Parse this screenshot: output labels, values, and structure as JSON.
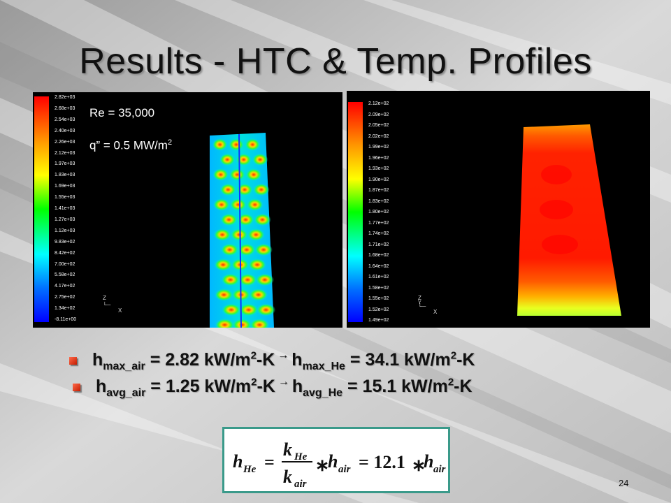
{
  "slide": {
    "title": "Results - HTC & Temp. Profiles",
    "page_number": "24"
  },
  "htc_panel": {
    "annot_re": "Re = 35,000",
    "annot_q": "q” = 0.5 MW/m",
    "annot_q_sup": "2",
    "colorbar_labels": [
      "2.82e+03",
      "2.68e+03",
      "2.54e+03",
      "2.40e+03",
      "2.26e+03",
      "2.12e+03",
      "1.97e+03",
      "1.83e+03",
      "1.69e+03",
      "1.55e+03",
      "1.41e+03",
      "1.27e+03",
      "1.12e+03",
      "9.83e+02",
      "8.42e+02",
      "7.00e+02",
      "5.58e+02",
      "4.17e+02",
      "2.75e+02",
      "1.34e+02",
      "-8.11e+00"
    ],
    "axis_z": "Z",
    "axis_x": "X"
  },
  "temp_panel": {
    "colorbar_labels": [
      "2.12e+02",
      "2.09e+02",
      "2.05e+02",
      "2.02e+02",
      "1.99e+02",
      "1.96e+02",
      "1.93e+02",
      "1.90e+02",
      "1.87e+02",
      "1.83e+02",
      "1.80e+02",
      "1.77e+02",
      "1.74e+02",
      "1.71e+02",
      "1.68e+02",
      "1.64e+02",
      "1.61e+02",
      "1.58e+02",
      "1.55e+02",
      "1.52e+02",
      "1.49e+02"
    ],
    "axis_z": "Z",
    "axis_y": "Y",
    "axis_x": "X"
  },
  "bullets": [
    {
      "h1": "h",
      "sub1": "max_air",
      "val1": " = 2.82 kW/m",
      "sup1": "2",
      "unit1": "-K",
      "arrow": "→",
      "h2": "h",
      "sub2": "max_He",
      "val2": " = 34.1 kW/m",
      "sup2": "2",
      "unit2": "-K"
    },
    {
      "h1": "h",
      "sub1": "avg_air",
      "val1": " = 1.25 kW/m",
      "sup1": "2",
      "unit1": "-K",
      "arrow": "→",
      "h2": "h",
      "sub2": "avg_He",
      "val2": " = 15.1 kW/m",
      "sup2": "2",
      "unit2": "-K"
    }
  ],
  "formula": {
    "lhs": "h",
    "lhs_sub": "He",
    "eq1": "=",
    "num": "k",
    "num_sub": "He",
    "den": "k",
    "den_sub": "air",
    "times1": "∗",
    "h_air": "h",
    "h_air_sub": "air",
    "eq2": "= 12.1",
    "times2": "∗",
    "h_air2": "h",
    "h_air2_sub": "air"
  },
  "colors": {
    "accent_border": "#3a9a8a",
    "bullet": "#d42a10"
  }
}
